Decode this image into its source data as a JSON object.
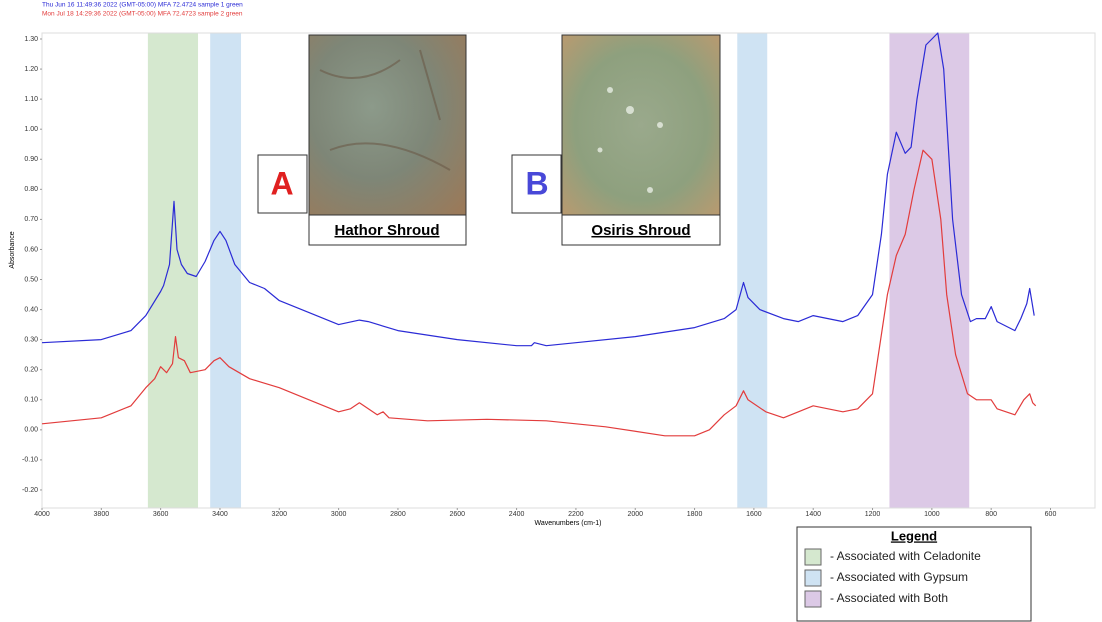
{
  "chart_data": {
    "type": "line",
    "xlabel": "Wavenumbers (cm-1)",
    "ylabel": "Absorbance",
    "xlim": [
      4000,
      450
    ],
    "ylim": [
      -0.26,
      1.32
    ],
    "xticks": [
      4000,
      3800,
      3600,
      3400,
      3200,
      3000,
      2800,
      2600,
      2400,
      2200,
      2000,
      1800,
      1600,
      1400,
      1200,
      1000,
      800,
      600
    ],
    "yticks": [
      {
        "value": 1.3,
        "label": "1.30"
      },
      {
        "value": 1.2,
        "label": "1.20"
      },
      {
        "value": 1.1,
        "label": "1.10"
      },
      {
        "value": 1.0,
        "label": "1.00"
      },
      {
        "value": 0.9,
        "label": "0.90"
      },
      {
        "value": 0.8,
        "label": "0.80"
      },
      {
        "value": 0.7,
        "label": "0.70"
      },
      {
        "value": 0.6,
        "label": "0.60"
      },
      {
        "value": 0.5,
        "label": "0.50"
      },
      {
        "value": 0.4,
        "label": "0.40"
      },
      {
        "value": 0.3,
        "label": "0.30"
      },
      {
        "value": 0.2,
        "label": "0.20"
      },
      {
        "value": 0.1,
        "label": "0.10"
      },
      {
        "value": 0,
        "label": "0.00"
      },
      {
        "value": -0.1,
        "label": "-0.10"
      },
      {
        "value": -0.2,
        "label": "-0.20"
      }
    ],
    "series": [
      {
        "name": "Thu Jun 16 11:49:36 2022 (GMT-05:00) MFA 72.4724 sample 1 green",
        "color": "#2b2bd6",
        "x": [
          4000,
          3800,
          3700,
          3650,
          3600,
          3590,
          3570,
          3555,
          3545,
          3530,
          3510,
          3480,
          3450,
          3420,
          3400,
          3380,
          3350,
          3300,
          3250,
          3200,
          3100,
          3000,
          2930,
          2900,
          2800,
          2600,
          2400,
          2350,
          2340,
          2300,
          2200,
          2000,
          1800,
          1700,
          1660,
          1635,
          1620,
          1580,
          1500,
          1450,
          1400,
          1350,
          1300,
          1250,
          1200,
          1170,
          1150,
          1120,
          1090,
          1070,
          1050,
          1020,
          1000,
          980,
          960,
          930,
          900,
          870,
          850,
          820,
          800,
          780,
          720,
          700,
          680,
          670,
          655
        ],
        "values": [
          0.29,
          0.3,
          0.33,
          0.38,
          0.46,
          0.48,
          0.55,
          0.76,
          0.6,
          0.55,
          0.52,
          0.51,
          0.56,
          0.63,
          0.66,
          0.63,
          0.55,
          0.49,
          0.47,
          0.43,
          0.39,
          0.35,
          0.365,
          0.36,
          0.33,
          0.3,
          0.28,
          0.28,
          0.29,
          0.28,
          0.29,
          0.31,
          0.34,
          0.37,
          0.4,
          0.49,
          0.44,
          0.4,
          0.37,
          0.36,
          0.38,
          0.37,
          0.36,
          0.38,
          0.45,
          0.65,
          0.85,
          0.99,
          0.92,
          0.94,
          1.1,
          1.28,
          1.3,
          1.32,
          1.2,
          0.7,
          0.45,
          0.36,
          0.37,
          0.37,
          0.41,
          0.36,
          0.33,
          0.37,
          0.42,
          0.47,
          0.38
        ]
      },
      {
        "name": "Mon Jul 18 14:29:36 2022 (GMT-05:00) MFA 72.4723 sample 2 green",
        "color": "#e23c3c",
        "x": [
          4000,
          3800,
          3700,
          3650,
          3620,
          3600,
          3580,
          3560,
          3550,
          3540,
          3520,
          3500,
          3450,
          3420,
          3400,
          3370,
          3300,
          3200,
          3100,
          3000,
          2960,
          2930,
          2900,
          2870,
          2850,
          2830,
          2700,
          2500,
          2300,
          2100,
          1900,
          1800,
          1750,
          1700,
          1660,
          1635,
          1620,
          1560,
          1500,
          1450,
          1400,
          1350,
          1300,
          1250,
          1200,
          1150,
          1120,
          1090,
          1060,
          1030,
          1000,
          970,
          950,
          920,
          880,
          850,
          820,
          800,
          780,
          720,
          690,
          670,
          660,
          650
        ],
        "values": [
          0.02,
          0.04,
          0.08,
          0.14,
          0.17,
          0.21,
          0.19,
          0.22,
          0.31,
          0.24,
          0.23,
          0.19,
          0.2,
          0.23,
          0.24,
          0.21,
          0.17,
          0.14,
          0.1,
          0.06,
          0.07,
          0.09,
          0.07,
          0.05,
          0.06,
          0.04,
          0.03,
          0.035,
          0.03,
          0.01,
          -0.02,
          -0.02,
          0.0,
          0.05,
          0.08,
          0.13,
          0.1,
          0.06,
          0.04,
          0.06,
          0.08,
          0.07,
          0.06,
          0.07,
          0.12,
          0.45,
          0.58,
          0.65,
          0.8,
          0.93,
          0.9,
          0.7,
          0.45,
          0.25,
          0.12,
          0.1,
          0.1,
          0.1,
          0.07,
          0.05,
          0.1,
          0.12,
          0.09,
          0.08
        ]
      }
    ],
    "bands": [
      {
        "from": 3643,
        "to": 3474,
        "color": "#d5e8cf"
      },
      {
        "from": 3433,
        "to": 3329,
        "color": "#cfe3f3"
      },
      {
        "from": 1656,
        "to": 1555,
        "color": "#cfe3f3"
      },
      {
        "from": 1143,
        "to": 874,
        "color": "#dcc9e6"
      }
    ],
    "insets": [
      {
        "letter": "A",
        "letter_color": "#e02020",
        "caption": "Hathor Shroud"
      },
      {
        "letter": "B",
        "letter_color": "#4848d8",
        "caption": "Osiris Shroud"
      }
    ],
    "legend": {
      "title": "Legend",
      "items": [
        {
          "label": "- Associated with Celadonite",
          "color": "#d5e8cf"
        },
        {
          "label": "- Associated with Gypsum",
          "color": "#cfe3f3"
        },
        {
          "label": "- Associated with Both",
          "color": "#dcc9e6"
        }
      ]
    }
  }
}
